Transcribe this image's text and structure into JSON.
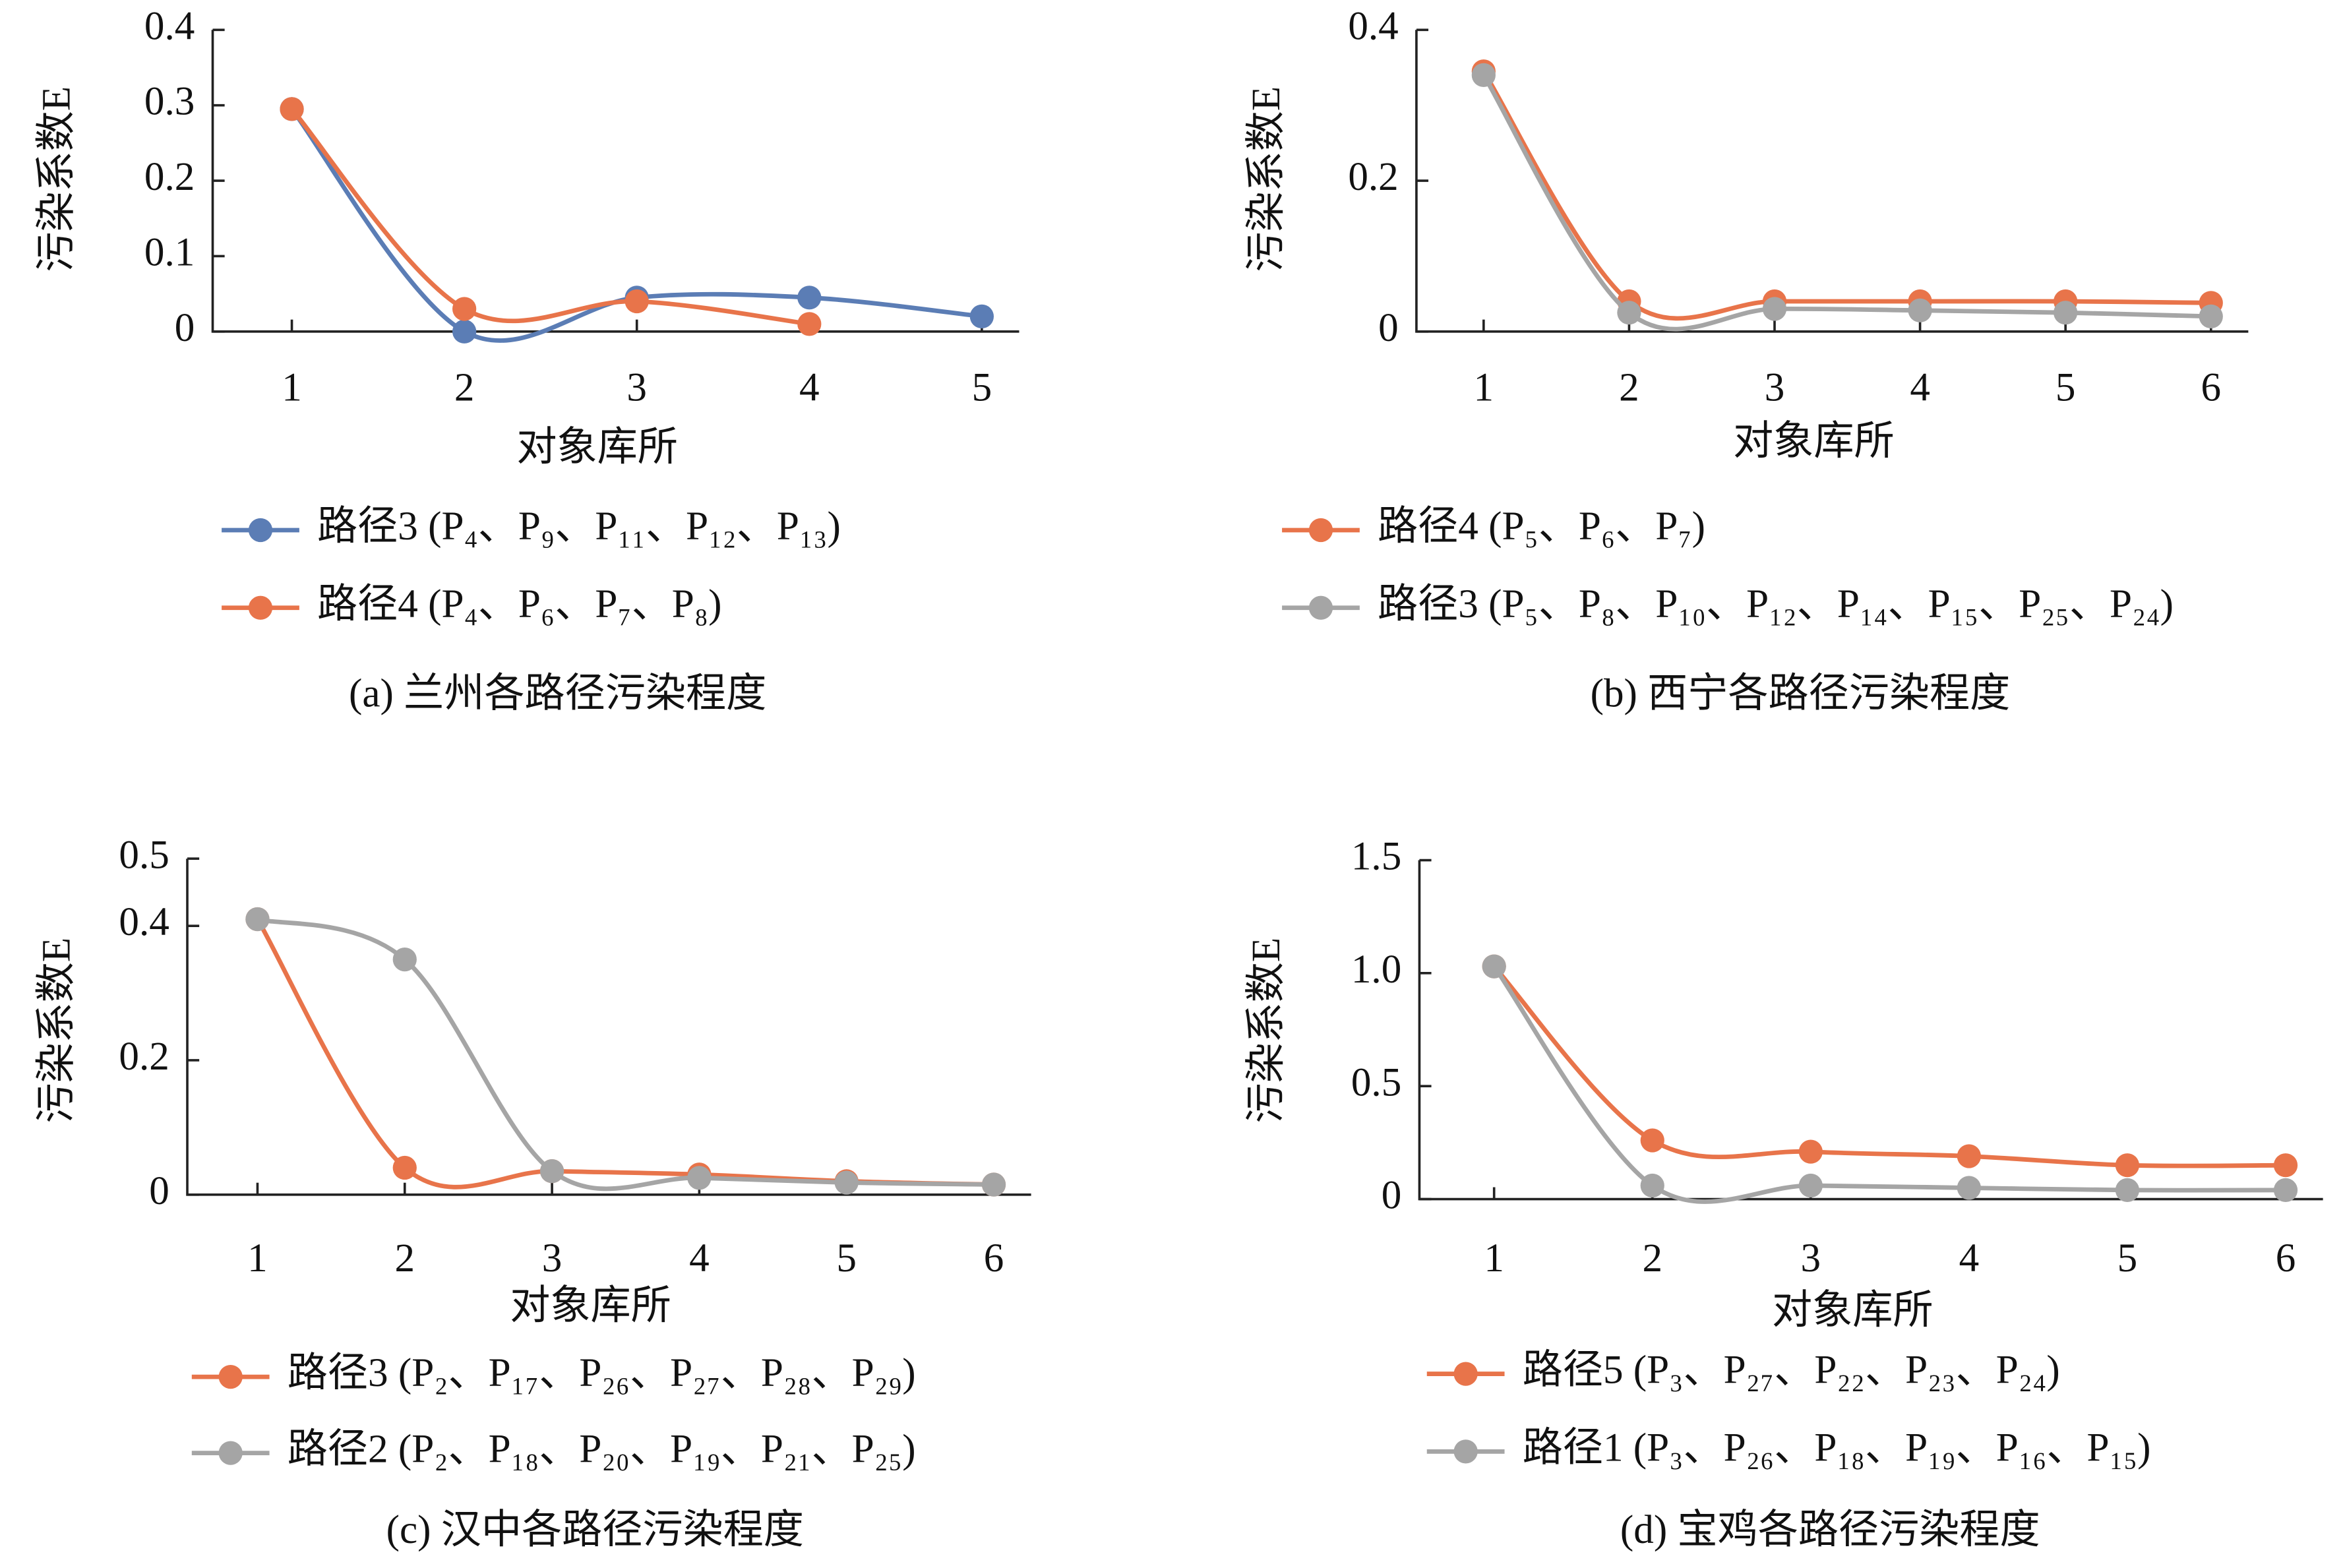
{
  "chart_data": [
    {
      "type": "line",
      "caption": "(a) 兰州各路径污染程度",
      "x_label": "对象库所",
      "y_label": "污染系数E",
      "categories": [
        "1",
        "2",
        "3",
        "4",
        "5"
      ],
      "ylim": [
        0,
        0.4
      ],
      "yticks": [
        0,
        0.1,
        0.2,
        0.3,
        0.4
      ],
      "series": [
        {
          "name": "路径3 (P₄、P₉、P₁₁、P₁₂、P₁₃)",
          "color": "#5b7db5",
          "values": [
            0.295,
            0,
            0.045,
            0.045,
            0.02
          ]
        },
        {
          "name": "路径4 (P₄、P₆、P₇、P₈)",
          "color": "#e8744a",
          "values": [
            0.295,
            0.03,
            0.04,
            0.01,
            null
          ]
        }
      ]
    },
    {
      "type": "line",
      "caption": "(b) 西宁各路径污染程度",
      "x_label": "对象库所",
      "y_label": "污染系数E",
      "categories": [
        "1",
        "2",
        "3",
        "4",
        "5",
        "6"
      ],
      "ylim": [
        0,
        0.4
      ],
      "yticks": [
        0,
        0.2,
        0.4
      ],
      "series": [
        {
          "name": "路径4 (P₅、P₆、P₇)",
          "color": "#e8744a",
          "values": [
            0.345,
            0.04,
            0.04,
            0.04,
            0.04,
            0.038
          ]
        },
        {
          "name": "路径3 (P₅、P₈、P₁₀、P₁₂、P₁₄、P₁₅、P₂₅、P₂₄)",
          "color": "#a5a5a5",
          "values": [
            0.34,
            0.025,
            0.03,
            0.028,
            0.025,
            0.02
          ]
        }
      ]
    },
    {
      "type": "line",
      "caption": "(c) 汉中各路径污染程度",
      "x_label": "对象库所",
      "y_label": "污染系数E",
      "categories": [
        "1",
        "2",
        "3",
        "4",
        "5",
        "6"
      ],
      "ylim": [
        0,
        0.5
      ],
      "yticks": [
        0,
        0.2,
        0.4,
        0.5
      ],
      "series": [
        {
          "name": "路径3 (P₂、P₁₇、P₂₆、P₂₇、P₂₈、P₂₉)",
          "color": "#e8744a",
          "values": [
            0.41,
            0.04,
            0.035,
            0.03,
            0.02,
            0.015
          ]
        },
        {
          "name": "路径2 (P₂、P₁₈、P₂₀、P₁₉、P₂₁、P₂₅)",
          "color": "#a5a5a5",
          "values": [
            0.41,
            0.35,
            0.035,
            0.025,
            0.018,
            0.015
          ]
        }
      ]
    },
    {
      "type": "line",
      "caption": "(d) 宝鸡各路径污染程度",
      "x_label": "对象库所",
      "y_label": "污染系数E",
      "categories": [
        "1",
        "2",
        "3",
        "4",
        "5",
        "6"
      ],
      "ylim": [
        0,
        1.5
      ],
      "yticks": [
        0,
        0.5,
        {
          "value": 1,
          "label": "1.0"
        },
        1.5
      ],
      "series": [
        {
          "name": "路径5 (P₃、P₂₇、P₂₂、P₂₃、P₂₄)",
          "color": "#e8744a",
          "values": [
            1.03,
            0.26,
            0.21,
            0.19,
            0.15,
            0.15
          ]
        },
        {
          "name": "路径1 (P₃、P₂₆、P₁₈、P₁₉、P₁₆、P₁₅)",
          "color": "#a5a5a5",
          "values": [
            1.03,
            0.06,
            0.06,
            0.05,
            0.04,
            0.04
          ]
        }
      ]
    }
  ]
}
